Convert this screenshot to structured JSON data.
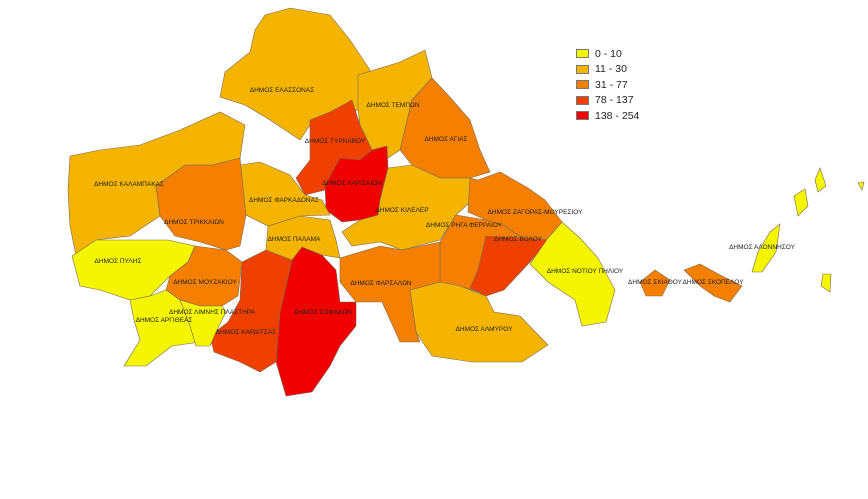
{
  "legend": {
    "classes": [
      {
        "label": "0 - 10",
        "color": "#f5f500"
      },
      {
        "label": "11 - 30",
        "color": "#f5b400"
      },
      {
        "label": "31 - 77",
        "color": "#f57f00"
      },
      {
        "label": "78 - 137",
        "color": "#f04000"
      },
      {
        "label": "138 - 254",
        "color": "#f00000"
      }
    ]
  },
  "municipalities": [
    {
      "name": "ΔΗΜΟΣ ΕΛΑΣΣΟΝΑΣ",
      "class": 1
    },
    {
      "name": "ΔΗΜΟΣ ΤΕΜΠΩΝ",
      "class": 1
    },
    {
      "name": "ΔΗΜΟΣ ΤΥΡΝΑΒΟΥ",
      "class": 3
    },
    {
      "name": "ΔΗΜΟΣ ΛΑΡΙΣΑΙΩΝ",
      "class": 4
    },
    {
      "name": "ΔΗΜΟΣ ΑΓΙΑΣ",
      "class": 2
    },
    {
      "name": "ΔΗΜΟΣ ΚΙΛΕΛΕΡ",
      "class": 1
    },
    {
      "name": "ΔΗΜΟΣ ΖΑΓΟΡΑΣ-ΜΟΥΡΕΣΙΟΥ",
      "class": 2
    },
    {
      "name": "ΔΗΜΟΣ ΡΗΓΑ ΦΕΡΡΑΙΟΥ",
      "class": 2
    },
    {
      "name": "ΔΗΜΟΣ ΒΟΛΟΥ",
      "class": 3
    },
    {
      "name": "ΔΗΜΟΣ ΝΟΤΙΟΥ ΠΗΛΙΟΥ",
      "class": 0
    },
    {
      "name": "ΔΗΜΟΣ ΑΛΜΥΡΟΥ",
      "class": 1
    },
    {
      "name": "ΔΗΜΟΣ ΦΑΡΣΑΛΩΝ",
      "class": 2
    },
    {
      "name": "ΔΗΜΟΣ ΣΟΦΑΔΩΝ",
      "class": 4
    },
    {
      "name": "ΔΗΜΟΣ ΚΑΡΔΙΤΣΑΣ",
      "class": 3
    },
    {
      "name": "ΔΗΜΟΣ ΠΑΛΑΜΑ",
      "class": 1
    },
    {
      "name": "ΔΗΜΟΣ ΦΑΡΚΑΔΟΝΑΣ",
      "class": 1
    },
    {
      "name": "ΔΗΜΟΣ ΤΡΙΚΚΑΙΩΝ",
      "class": 2
    },
    {
      "name": "ΔΗΜΟΣ ΚΑΛΑΜΠΑΚΑΣ",
      "class": 1
    },
    {
      "name": "ΔΗΜΟΣ ΠΥΛΗΣ",
      "class": 0
    },
    {
      "name": "ΔΗΜΟΣ ΜΟΥΖΑΚΙΟΥ",
      "class": 2
    },
    {
      "name": "ΔΗΜΟΣ ΑΡΓΙΘΕΑΣ",
      "class": 0
    },
    {
      "name": "ΔΗΜΟΣ ΛΙΜΝΗΣ ΠΛΑΣΤΗΡΑ",
      "class": 0
    },
    {
      "name": "ΔΗΜΟΣ ΣΚΙΑΘΟΥ",
      "class": 2
    },
    {
      "name": "ΔΗΜΟΣ ΣΚΟΠΕΛΟΥ",
      "class": 2
    },
    {
      "name": "ΔΗΜΟΣ ΑΛΟΝΝΗΣΟΥ",
      "class": 0
    }
  ]
}
